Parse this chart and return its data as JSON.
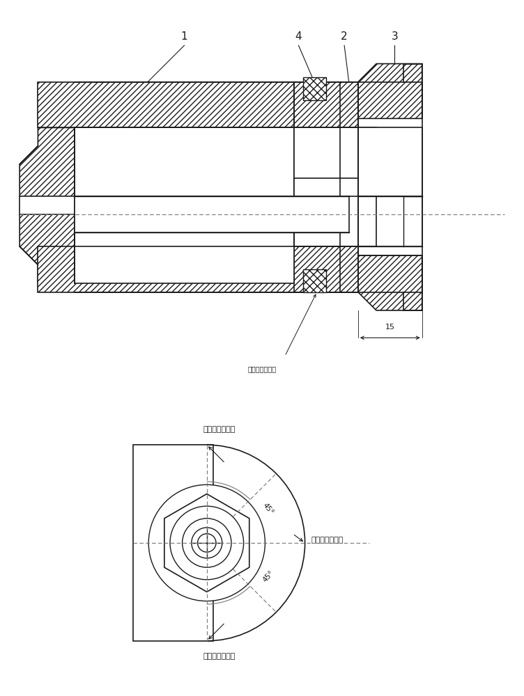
{
  "bg_color": "#ffffff",
  "line_color": "#1a1a1a",
  "hatch_color": "#555555",
  "dashed_color": "#777777",
  "fig_width": 7.52,
  "fig_height": 10.0,
  "label_1": "1",
  "label_2": "2",
  "label_3": "3",
  "label_4": "4",
  "dim_label": "15",
  "strain_label": "应变片安装位置",
  "strain_label_top": "应变片安装位置",
  "strain_label_right": "应变片安装位置",
  "strain_label_bottom": "应变片安装位置",
  "angle_top": "45°",
  "angle_bottom": "45°"
}
